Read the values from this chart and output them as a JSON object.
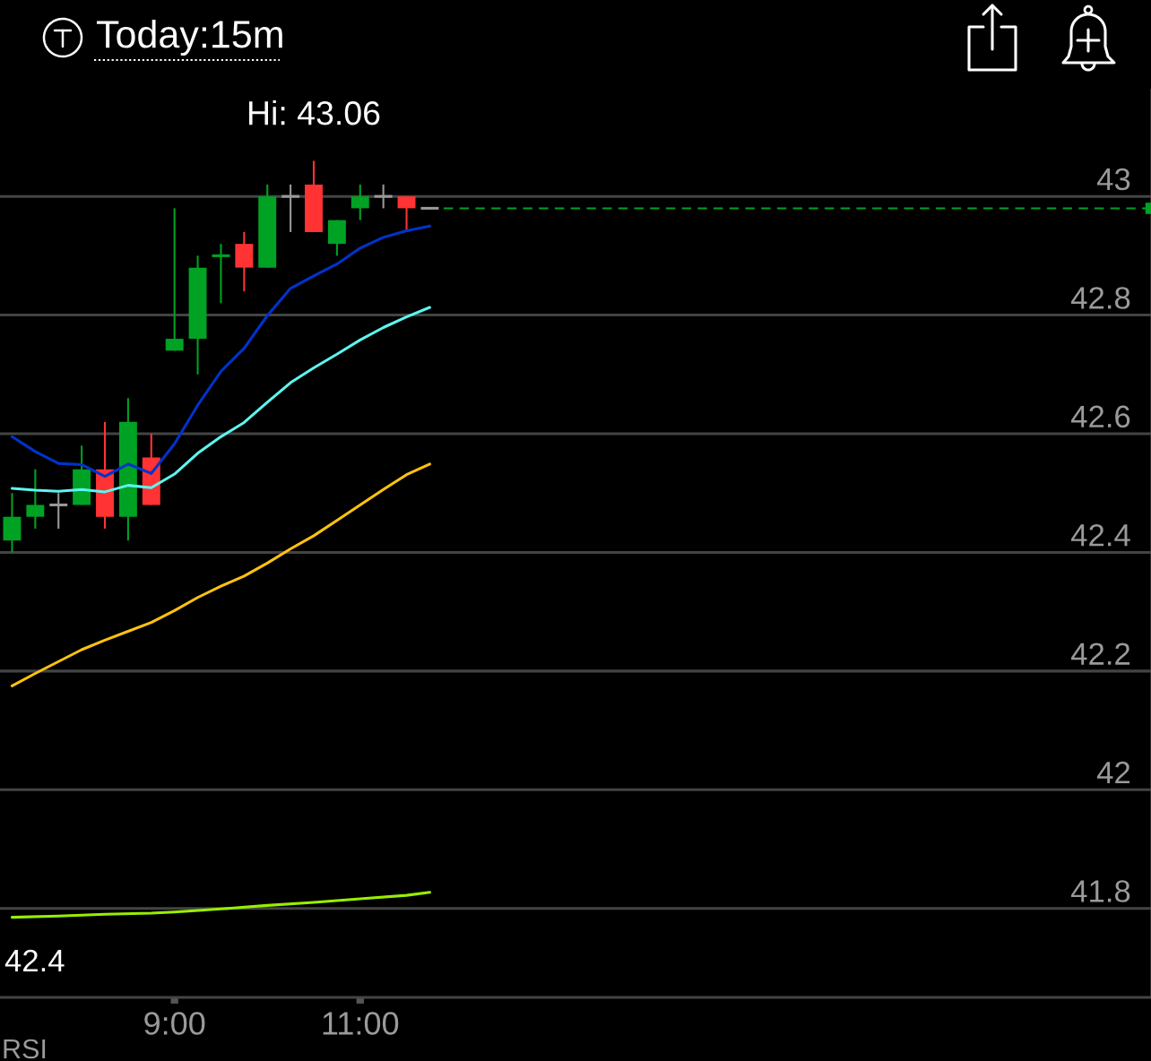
{
  "chart_data": {
    "type": "candlestick",
    "title": "Today:15m",
    "annotations": [
      {
        "text": "Hi: 43.06",
        "x": 10.5,
        "y": 43.06
      },
      "42.4",
      "RSI"
    ],
    "x": [
      7.25,
      7.5,
      7.75,
      8.0,
      8.25,
      8.5,
      8.75,
      9.0,
      9.25,
      9.5,
      9.75,
      10.0,
      10.25,
      10.5,
      10.75,
      11.0,
      11.25,
      11.5,
      11.75
    ],
    "ohlc": [
      [
        42.42,
        42.5,
        42.4,
        42.46
      ],
      [
        42.46,
        42.54,
        42.44,
        42.48
      ],
      [
        42.48,
        42.5,
        42.44,
        42.48
      ],
      [
        42.48,
        42.58,
        42.48,
        42.54
      ],
      [
        42.54,
        42.62,
        42.44,
        42.46
      ],
      [
        42.46,
        42.66,
        42.42,
        42.62
      ],
      [
        42.56,
        42.6,
        42.48,
        42.48
      ],
      [
        42.74,
        42.98,
        42.74,
        42.76
      ],
      [
        42.76,
        42.9,
        42.7,
        42.88
      ],
      [
        42.9,
        42.92,
        42.82,
        42.9
      ],
      [
        42.92,
        42.94,
        42.84,
        42.88
      ],
      [
        42.88,
        43.02,
        42.88,
        43.0
      ],
      [
        43.0,
        43.02,
        42.94,
        43.0
      ],
      [
        43.02,
        43.06,
        42.94,
        42.94
      ],
      [
        42.92,
        42.96,
        42.9,
        42.96
      ],
      [
        42.98,
        43.02,
        42.96,
        43.0
      ],
      [
        43.0,
        43.02,
        42.98,
        43.0
      ],
      [
        43.0,
        43.0,
        42.94,
        42.98
      ],
      [
        42.98,
        42.98,
        42.98,
        42.98
      ]
    ],
    "colors": [
      "#00a224",
      "#00a224",
      "#999999",
      "#00a224",
      "#ff3333",
      "#00a224",
      "#ff3333",
      "#00a224",
      "#00a224",
      "#00a224",
      "#ff3333",
      "#00a224",
      "#999999",
      "#ff3333",
      "#00a224",
      "#00a224",
      "#999999",
      "#ff3333",
      "#999999"
    ],
    "series": [
      {
        "type": "line",
        "color": "#0033cc",
        "values": [
          42.595,
          42.57,
          42.55,
          42.548,
          42.528,
          42.549,
          42.533,
          42.583,
          42.648,
          42.705,
          42.744,
          42.799,
          42.845,
          42.866,
          42.886,
          42.913,
          42.931,
          42.942,
          42.95
        ]
      },
      {
        "type": "line",
        "color": "#5cf5ee",
        "values": [
          42.508,
          42.505,
          42.503,
          42.506,
          42.502,
          42.513,
          42.509,
          42.532,
          42.567,
          42.595,
          42.619,
          42.653,
          42.686,
          42.711,
          42.734,
          42.758,
          42.779,
          42.797,
          42.813
        ]
      },
      {
        "type": "line",
        "color": "#ffc20e",
        "values": [
          42.175,
          42.196,
          42.216,
          42.236,
          42.252,
          42.267,
          42.282,
          42.302,
          42.324,
          42.343,
          42.36,
          42.382,
          42.406,
          42.428,
          42.454,
          42.48,
          42.506,
          42.531,
          42.549
        ]
      },
      {
        "type": "line",
        "color": "#99ee00",
        "x": [
          7.25,
          7.75,
          8.25,
          8.75,
          9.0,
          9.5,
          10.0,
          10.5,
          11.0,
          11.5,
          11.75
        ],
        "values": [
          41.785,
          41.787,
          41.79,
          41.792,
          41.794,
          41.799,
          41.805,
          41.81,
          41.816,
          41.822,
          41.827
        ]
      }
    ],
    "ref_lines": [
      {
        "axis": "y",
        "value": 42.98,
        "color": "#00a224",
        "line_style": "dashed"
      }
    ],
    "xlim": [
      7.12,
      19.52
    ],
    "ylim": [
      41.65,
      43.18
    ],
    "xticks": [
      {
        "value": 9,
        "label": "9:00"
      },
      {
        "value": 11,
        "label": "11:00"
      }
    ],
    "yticks": [
      41.8,
      42,
      42.2,
      42.4,
      42.6,
      42.8,
      43
    ],
    "grid": "y"
  }
}
